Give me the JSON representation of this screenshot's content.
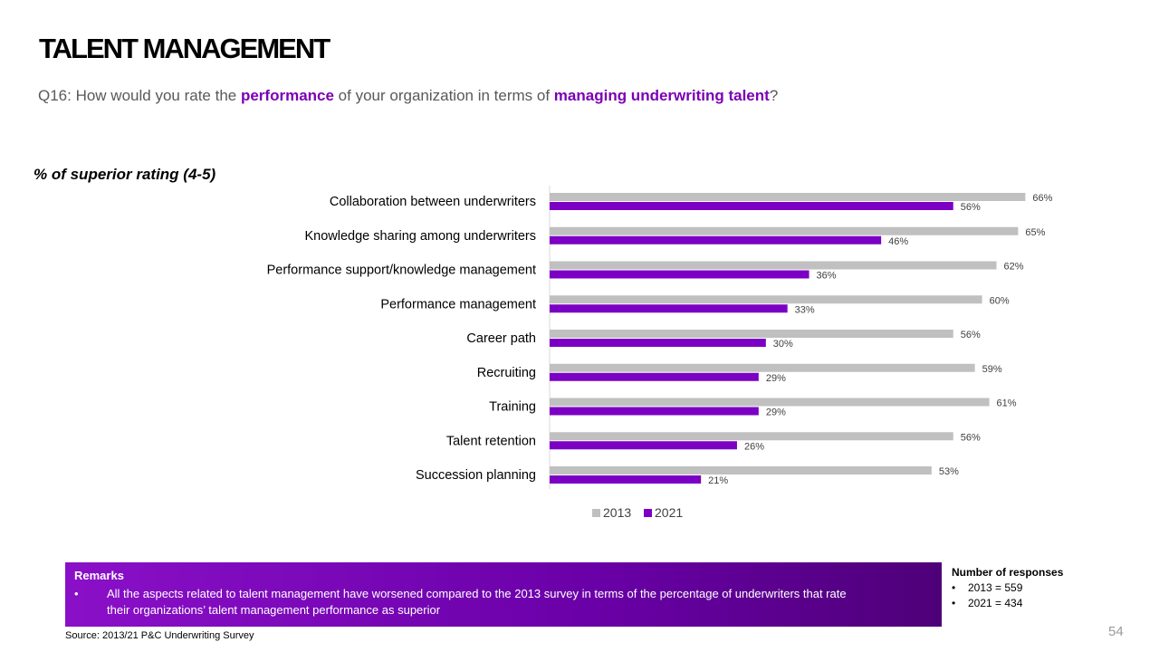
{
  "page": {
    "title": "TALENT MANAGEMENT",
    "question": {
      "part1": "Q16: How would you rate the ",
      "highlight1": "performance",
      "part2": " of your organization in terms of ",
      "highlight2": "managing underwriting talent",
      "part3": "?"
    },
    "rating_label": "% of superior rating (4-5)",
    "remarks": {
      "title": "Remarks",
      "bullet": "•",
      "items": [
        "All the aspects related to talent management have worsened compared to the 2013 survey in terms of the percentage of underwriters that rate their organizations’ talent management performance as superior"
      ]
    },
    "source": "Source: 2013/21 P&C Underwriting Survey",
    "responses": {
      "title": "Number of responses",
      "bullet": "•",
      "items": [
        "2013 = 559",
        "2021 = 434"
      ]
    },
    "page_number": "54"
  },
  "colors": {
    "series_2013": "#c0c0c0",
    "series_2021": "#7b00c4",
    "highlight": "#7b00b4"
  },
  "chart_data": {
    "type": "bar",
    "orientation": "horizontal",
    "categories": [
      "Collaboration between underwriters",
      "Knowledge sharing among underwriters",
      "Performance support/knowledge management",
      "Performance management",
      "Career path",
      "Recruiting",
      "Training",
      "Talent retention",
      "Succession planning"
    ],
    "series": [
      {
        "name": "2013",
        "values": [
          66,
          65,
          62,
          60,
          56,
          59,
          61,
          56,
          53
        ],
        "labels": [
          "66%",
          "65%",
          "62%",
          "60%",
          "56%",
          "59%",
          "61%",
          "56%",
          "53%"
        ]
      },
      {
        "name": "2021",
        "values": [
          56,
          46,
          36,
          33,
          30,
          29,
          29,
          26,
          21
        ],
        "labels": [
          "56%",
          "46%",
          "36%",
          "33%",
          "30%",
          "29%",
          "29%",
          "26%",
          "21%"
        ]
      }
    ],
    "xlim": [
      0,
      100
    ],
    "legend": "bottom",
    "grid": false
  }
}
